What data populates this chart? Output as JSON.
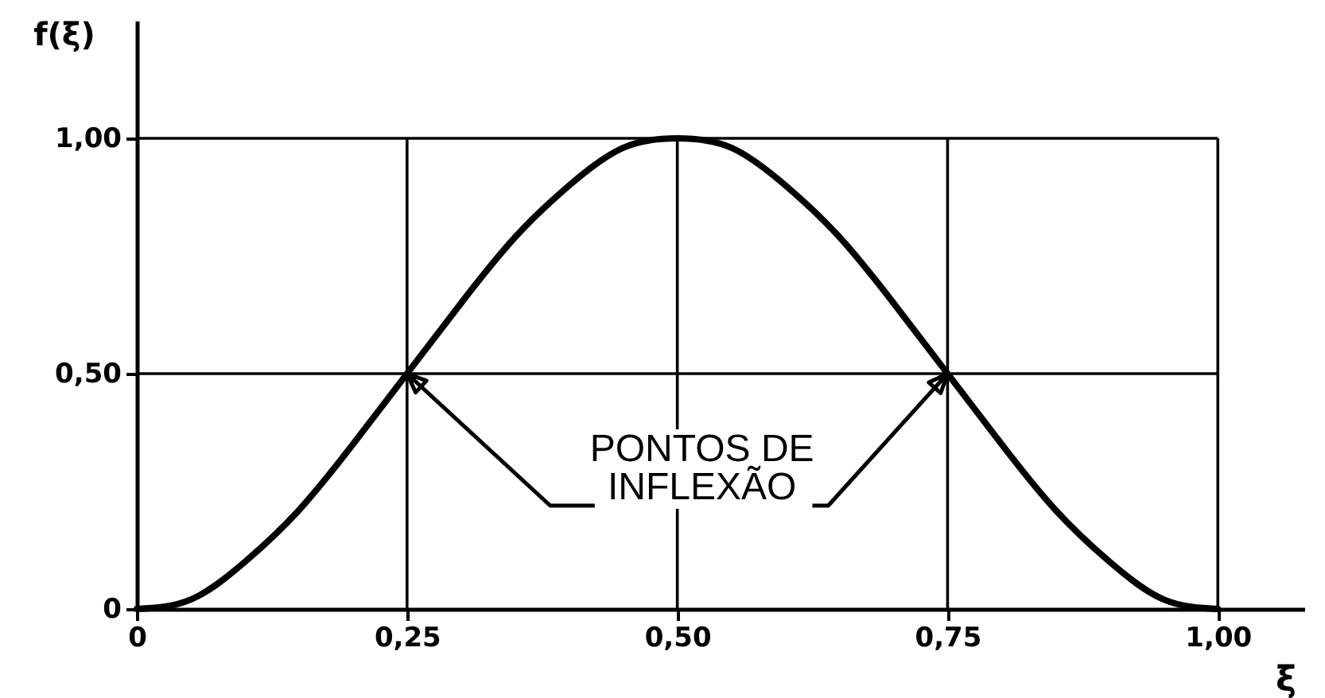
{
  "chart_data": {
    "type": "line",
    "xlabel": "ξ",
    "ylabel": "f(ξ)",
    "x": [
      0,
      0.05,
      0.1,
      0.15,
      0.2,
      0.25,
      0.3,
      0.35,
      0.4,
      0.45,
      0.5,
      0.55,
      0.6,
      0.65,
      0.7,
      0.75,
      0.8,
      0.85,
      0.9,
      0.95,
      1.0
    ],
    "series": [
      {
        "color": "#000000",
        "values": [
          0,
          0.02,
          0.1,
          0.21,
          0.35,
          0.5,
          0.65,
          0.79,
          0.9,
          0.98,
          1,
          0.98,
          0.9,
          0.79,
          0.65,
          0.5,
          0.35,
          0.21,
          0.1,
          0.02,
          0
        ]
      }
    ],
    "xlim": [
      0,
      1.08
    ],
    "ylim": [
      0,
      1.25
    ],
    "xticks": [
      {
        "value": 0,
        "label": "0"
      },
      {
        "value": 0.25,
        "label": "0,25"
      },
      {
        "value": 0.5,
        "label": "0,50"
      },
      {
        "value": 0.75,
        "label": "0,75"
      },
      {
        "value": 1,
        "label": "1,00"
      }
    ],
    "yticks": [
      {
        "value": 0,
        "label": "0"
      },
      {
        "value": 0.5,
        "label": "0,50"
      },
      {
        "value": 1,
        "label": "1,00"
      }
    ],
    "grid": true,
    "annotations": [
      {
        "text": "PONTOS DE INFLEXÃO",
        "x": 0.25,
        "y": 0.5
      }
    ]
  }
}
